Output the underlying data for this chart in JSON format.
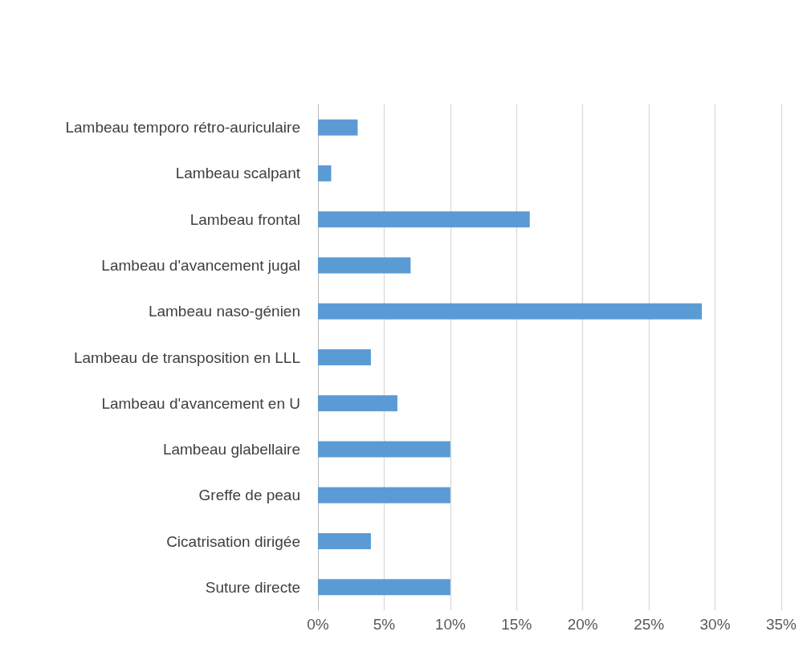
{
  "chart_data": {
    "type": "bar",
    "orientation": "horizontal",
    "categories": [
      "Lambeau temporo rétro-auriculaire",
      "Lambeau scalpant",
      "Lambeau frontal",
      "Lambeau d'avancement jugal",
      "Lambeau naso-génien",
      "Lambeau de transposition en LLL",
      "Lambeau d'avancement en U",
      "Lambeau glabellaire",
      "Greffe de peau",
      "Cicatrisation dirigée",
      "Suture directe"
    ],
    "values": [
      3,
      1,
      16,
      7,
      29,
      4,
      6,
      10,
      10,
      4,
      10
    ],
    "color": "#5b9bd5",
    "xlim": [
      0,
      35
    ],
    "xticks": [
      {
        "value": 0,
        "label": "0%"
      },
      {
        "value": 5,
        "label": "5%"
      },
      {
        "value": 10,
        "label": "10%"
      },
      {
        "value": 15,
        "label": "15%"
      },
      {
        "value": 20,
        "label": "20%"
      },
      {
        "value": 25,
        "label": "25%"
      },
      {
        "value": 30,
        "label": "30%"
      },
      {
        "value": 35,
        "label": "35%"
      }
    ],
    "grid": "x"
  }
}
